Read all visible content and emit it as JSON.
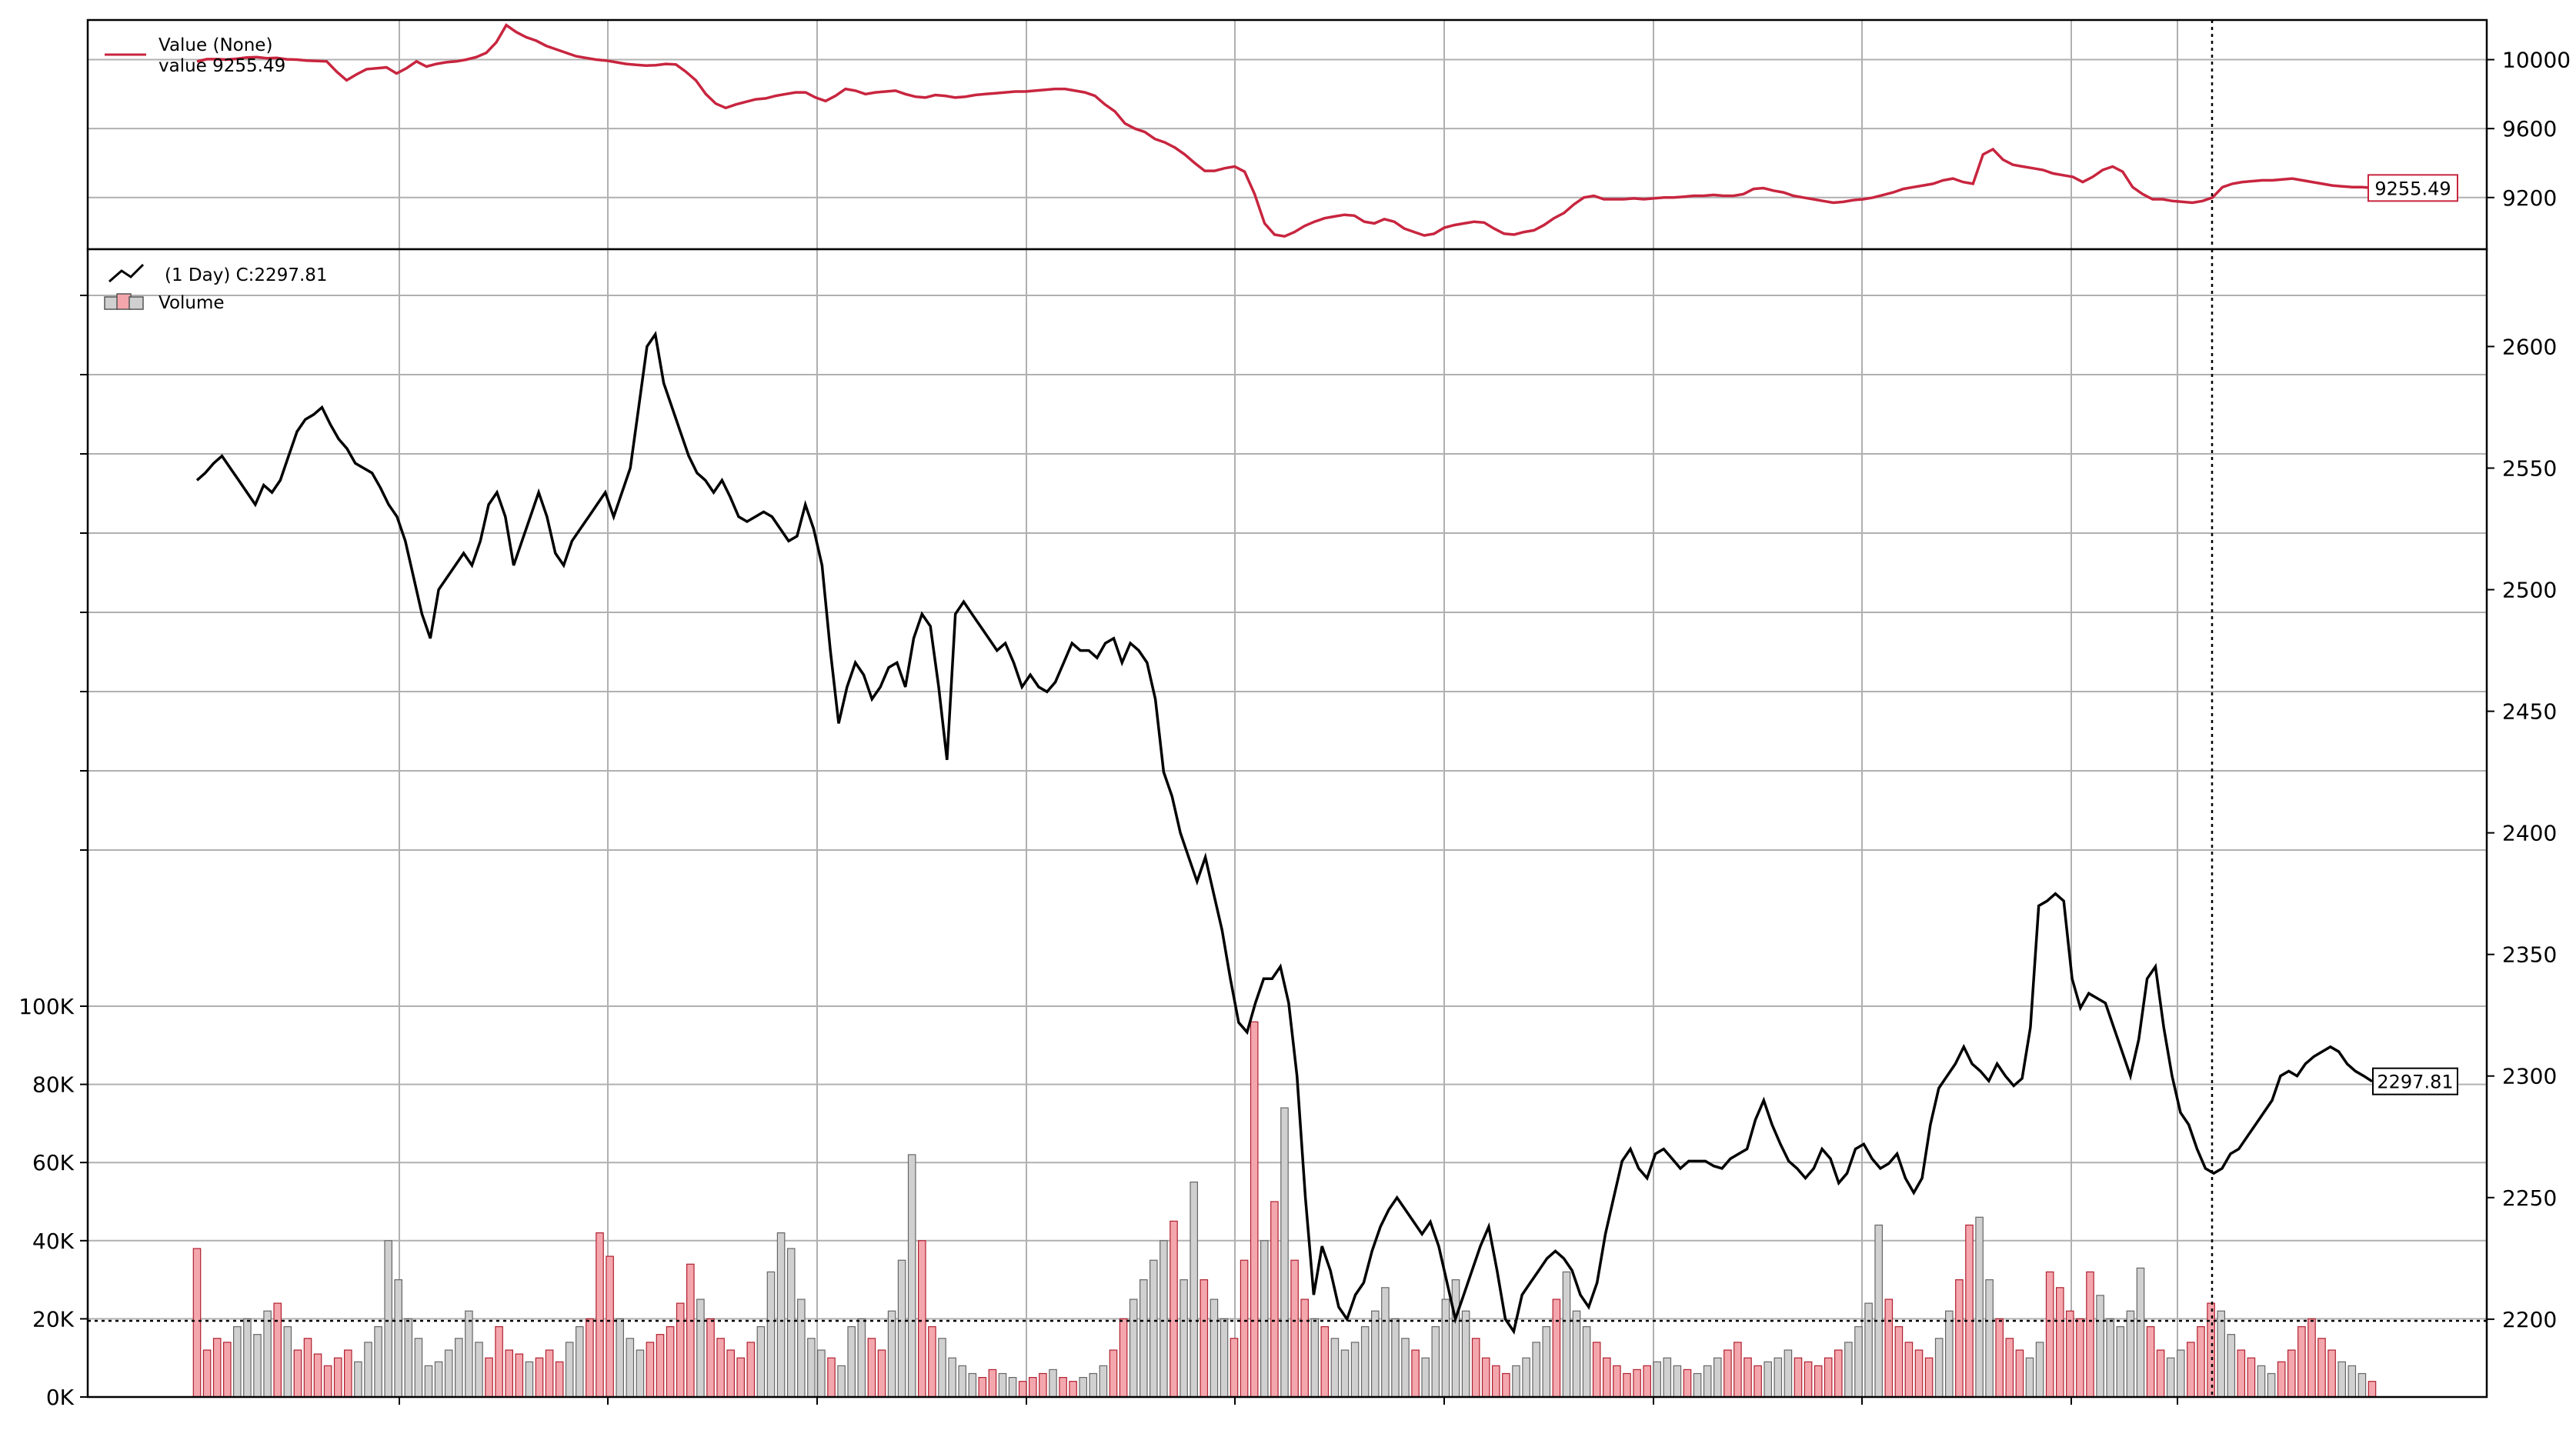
{
  "chart_data": [
    {
      "type": "line",
      "panel": "value",
      "legend": {
        "series_name": "Value (None)",
        "value_line": "value 9255.49"
      },
      "series": [
        {
          "name": "Value (None)",
          "color": "#c8253f",
          "values": [
            9990,
            10003,
            10003,
            10000,
            10005,
            10012,
            10015,
            10008,
            10010,
            10002,
            10000,
            9995,
            9992,
            9990,
            9930,
            9880,
            9915,
            9945,
            9950,
            9955,
            9920,
            9950,
            9990,
            9960,
            9975,
            9985,
            9990,
            10000,
            10015,
            10040,
            10100,
            10200,
            10160,
            10130,
            10110,
            10080,
            10060,
            10040,
            10020,
            10010,
            10000,
            9995,
            9985,
            9975,
            9970,
            9966,
            9968,
            9975,
            9972,
            9930,
            9880,
            9800,
            9745,
            9720,
            9740,
            9755,
            9770,
            9775,
            9790,
            9800,
            9810,
            9810,
            9780,
            9760,
            9790,
            9830,
            9820,
            9800,
            9810,
            9815,
            9820,
            9800,
            9785,
            9780,
            9795,
            9790,
            9780,
            9785,
            9795,
            9800,
            9805,
            9810,
            9815,
            9815,
            9820,
            9825,
            9830,
            9830,
            9820,
            9810,
            9790,
            9740,
            9700,
            9630,
            9600,
            9580,
            9540,
            9520,
            9490,
            9450,
            9400,
            9355,
            9355,
            9370,
            9380,
            9350,
            9220,
            9050,
            8985,
            8975,
            9000,
            9035,
            9060,
            9080,
            9090,
            9100,
            9095,
            9060,
            9050,
            9075,
            9060,
            9020,
            9000,
            8980,
            8990,
            9025,
            9040,
            9050,
            9060,
            9055,
            9020,
            8990,
            8985,
            9000,
            9010,
            9040,
            9080,
            9110,
            9160,
            9200,
            9210,
            9190,
            9190,
            9190,
            9195,
            9190,
            9195,
            9200,
            9200,
            9205,
            9210,
            9210,
            9215,
            9210,
            9210,
            9220,
            9250,
            9255,
            9240,
            9230,
            9210,
            9200,
            9190,
            9180,
            9170,
            9175,
            9185,
            9190,
            9200,
            9215,
            9230,
            9250,
            9260,
            9270,
            9280,
            9300,
            9310,
            9290,
            9280,
            9450,
            9480,
            9420,
            9390,
            9380,
            9370,
            9360,
            9340,
            9330,
            9320,
            9290,
            9320,
            9360,
            9380,
            9350,
            9260,
            9220,
            9190,
            9190,
            9180,
            9175,
            9170,
            9180,
            9200,
            9260,
            9280,
            9290,
            9295,
            9300,
            9300,
            9305,
            9310,
            9300,
            9290,
            9280,
            9270,
            9265,
            9260,
            9260,
            9255.49
          ]
        }
      ],
      "y_ticks": [
        9200,
        9600,
        10000
      ],
      "y_tick_labels": [
        "9200",
        "9600",
        "10000"
      ],
      "ylim": [
        8900,
        10230
      ],
      "last_value_tag": "9255.49",
      "grid": true
    },
    {
      "type": "line",
      "panel": "price",
      "legend": {
        "price_label": "(1 Day) C:2297.81",
        "volume_label": "Volume"
      },
      "series": [
        {
          "name": "(1 Day) C:2297.81",
          "color": "#000000",
          "values": [
            2545,
            2548,
            2552,
            2555,
            2550,
            2545,
            2540,
            2535,
            2543,
            2540,
            2545,
            2555,
            2565,
            2570,
            2572,
            2575,
            2568,
            2562,
            2558,
            2552,
            2550,
            2548,
            2542,
            2535,
            2530,
            2520,
            2505,
            2490,
            2480,
            2500,
            2505,
            2510,
            2515,
            2510,
            2520,
            2535,
            2540,
            2530,
            2510,
            2520,
            2530,
            2540,
            2530,
            2515,
            2510,
            2520,
            2525,
            2530,
            2535,
            2540,
            2530,
            2540,
            2550,
            2575,
            2600,
            2605,
            2585,
            2575,
            2565,
            2555,
            2548,
            2545,
            2540,
            2545,
            2538,
            2530,
            2528,
            2530,
            2532,
            2530,
            2525,
            2520,
            2522,
            2535,
            2525,
            2510,
            2475,
            2445,
            2460,
            2470,
            2465,
            2455,
            2460,
            2468,
            2470,
            2460,
            2480,
            2490,
            2485,
            2460,
            2430,
            2490,
            2495,
            2490,
            2485,
            2480,
            2475,
            2478,
            2470,
            2460,
            2465,
            2460,
            2458,
            2462,
            2470,
            2478,
            2475,
            2475,
            2472,
            2478,
            2480,
            2470,
            2478,
            2475,
            2470,
            2455,
            2425,
            2415,
            2400,
            2390,
            2380,
            2390,
            2375,
            2360,
            2340,
            2322,
            2318,
            2330,
            2340,
            2340,
            2345,
            2330,
            2300,
            2250,
            2210,
            2230,
            2220,
            2205,
            2200,
            2210,
            2215,
            2228,
            2238,
            2245,
            2250,
            2245,
            2240,
            2235,
            2240,
            2230,
            2215,
            2200,
            2210,
            2220,
            2230,
            2238,
            2220,
            2200,
            2195,
            2210,
            2215,
            2220,
            2225,
            2228,
            2225,
            2220,
            2210,
            2205,
            2215,
            2235,
            2250,
            2265,
            2270,
            2262,
            2258,
            2268,
            2270,
            2266,
            2262,
            2265,
            2265,
            2265,
            2263,
            2262,
            2266,
            2268,
            2270,
            2282,
            2290,
            2280,
            2272,
            2265,
            2262,
            2258,
            2262,
            2270,
            2266,
            2256,
            2260,
            2270,
            2272,
            2266,
            2262,
            2264,
            2268,
            2258,
            2252,
            2258,
            2280,
            2295,
            2300,
            2305,
            2312,
            2305,
            2302,
            2298,
            2305,
            2300,
            2296,
            2299,
            2320,
            2370,
            2372,
            2375,
            2372,
            2340,
            2328,
            2334,
            2332,
            2330,
            2320,
            2310,
            2300,
            2315,
            2340,
            2345,
            2320,
            2300,
            2285,
            2280,
            2270,
            2262,
            2260,
            2262,
            2268,
            2270,
            2275,
            2280,
            2285,
            2290,
            2300,
            2302,
            2300,
            2305,
            2308,
            2310,
            2312,
            2310,
            2305,
            2302,
            2300,
            2297.81
          ]
        }
      ],
      "y_ticks": [
        2200,
        2250,
        2300,
        2350,
        2400,
        2450,
        2500,
        2550,
        2600
      ],
      "y_tick_labels": [
        "2200",
        "2250",
        "2300",
        "2350",
        "2400",
        "2450",
        "2500",
        "2550",
        "2600"
      ],
      "ylim": [
        2168,
        2640
      ],
      "last_value_tag": "2297.81",
      "grid": true
    },
    {
      "type": "bar",
      "panel": "volume",
      "series": [
        {
          "name": "Volume",
          "up_color": "#f4a6ad",
          "down_color": "#d0d0d0",
          "values": [
            38000,
            12000,
            15000,
            14000,
            18000,
            20000,
            16000,
            22000,
            24000,
            18000,
            12000,
            15000,
            11000,
            8000,
            10000,
            12000,
            9000,
            14000,
            18000,
            40000,
            30000,
            20000,
            15000,
            8000,
            9000,
            12000,
            15000,
            22000,
            14000,
            10000,
            18000,
            12000,
            11000,
            9000,
            10000,
            12000,
            9000,
            14000,
            18000,
            20000,
            42000,
            36000,
            20000,
            15000,
            12000,
            14000,
            16000,
            18000,
            24000,
            34000,
            25000,
            20000,
            15000,
            12000,
            10000,
            14000,
            18000,
            32000,
            42000,
            38000,
            25000,
            15000,
            12000,
            10000,
            8000,
            18000,
            20000,
            15000,
            12000,
            22000,
            35000,
            62000,
            40000,
            18000,
            15000,
            10000,
            8000,
            6000,
            5000,
            7000,
            6000,
            5000,
            4000,
            5000,
            6000,
            7000,
            5000,
            4000,
            5000,
            6000,
            8000,
            12000,
            20000,
            25000,
            30000,
            35000,
            40000,
            45000,
            30000,
            55000,
            30000,
            25000,
            20000,
            15000,
            35000,
            96000,
            40000,
            50000,
            74000,
            35000,
            25000,
            20000,
            18000,
            15000,
            12000,
            14000,
            18000,
            22000,
            28000,
            20000,
            15000,
            12000,
            10000,
            18000,
            25000,
            30000,
            22000,
            15000,
            10000,
            8000,
            6000,
            8000,
            10000,
            14000,
            18000,
            25000,
            32000,
            22000,
            18000,
            14000,
            10000,
            8000,
            6000,
            7000,
            8000,
            9000,
            10000,
            8000,
            7000,
            6000,
            8000,
            10000,
            12000,
            14000,
            10000,
            8000,
            9000,
            10000,
            12000,
            10000,
            9000,
            8000,
            10000,
            12000,
            14000,
            18000,
            24000,
            44000,
            25000,
            18000,
            14000,
            12000,
            10000,
            15000,
            22000,
            30000,
            44000,
            46000,
            30000,
            20000,
            15000,
            12000,
            10000,
            14000,
            32000,
            28000,
            22000,
            20000,
            32000,
            26000,
            20000,
            18000,
            22000,
            33000,
            18000,
            12000,
            10000,
            12000,
            14000,
            18000,
            24000,
            22000,
            16000,
            12000,
            10000,
            8000,
            6000,
            9000,
            12000,
            18000,
            20000,
            15000,
            12000,
            9000,
            8000,
            6000,
            4000
          ]
        }
      ],
      "y_ticks": [
        0,
        20000,
        40000,
        60000,
        80000,
        100000
      ],
      "y_tick_labels": [
        "0K",
        "20K",
        "40K",
        "60K",
        "80K",
        "100K"
      ],
      "ylim": [
        0,
        100000
      ],
      "reference_line": 19500
    }
  ]
}
